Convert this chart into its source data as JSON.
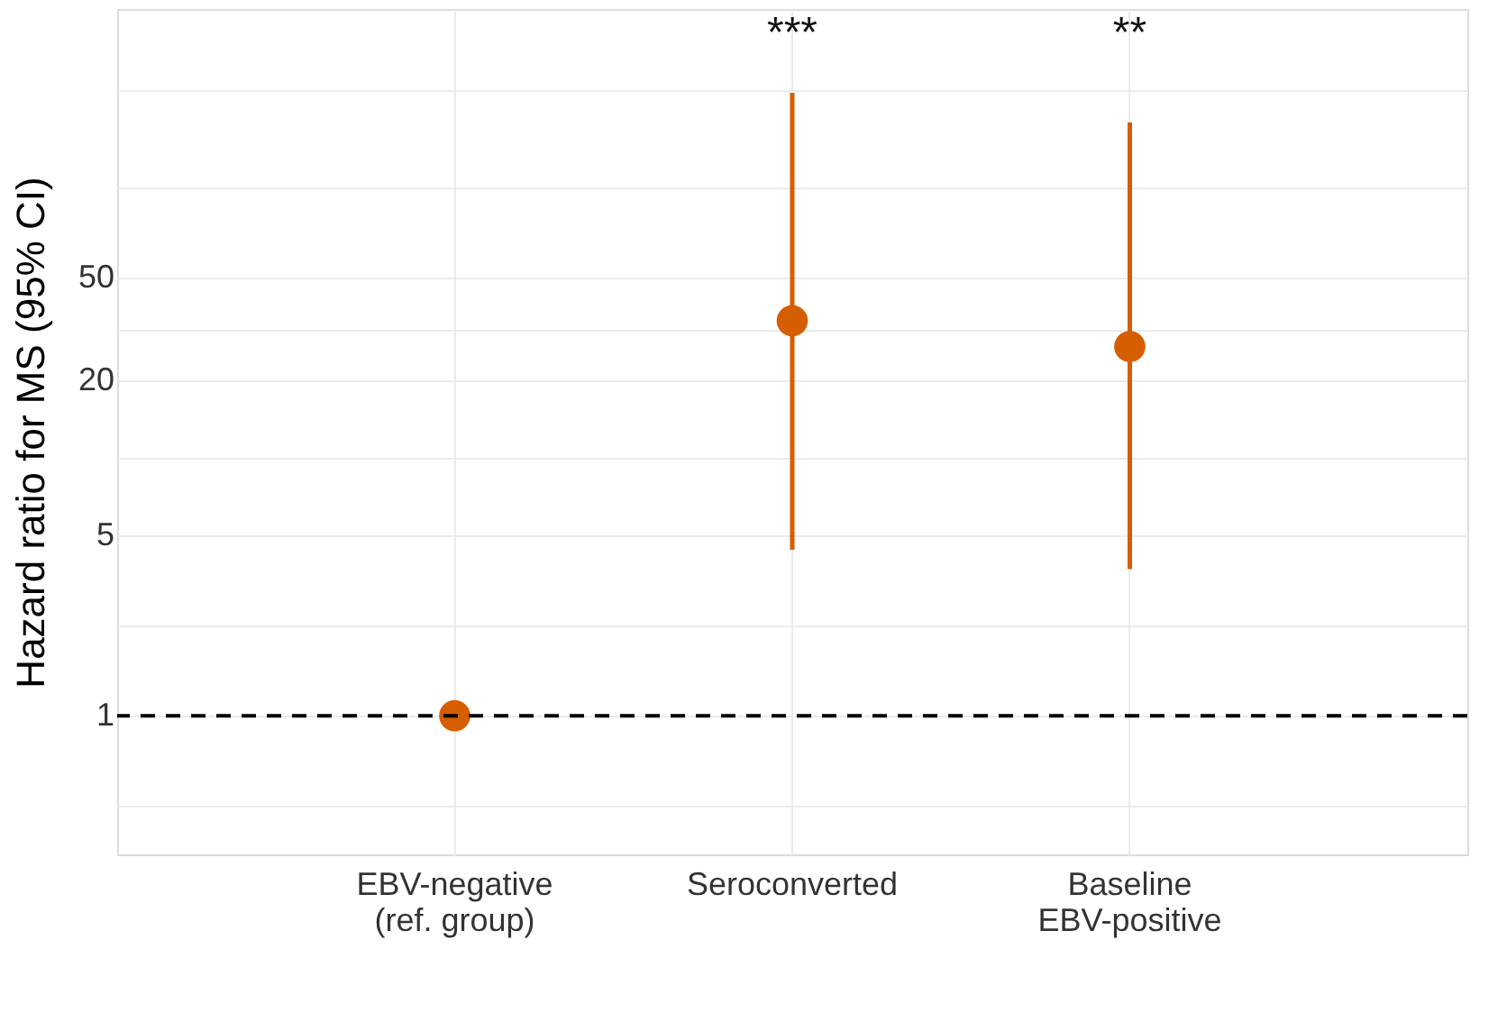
{
  "chart_data": {
    "type": "scatter",
    "ylabel": "Hazard ratio for MS (95% CI)",
    "categories": [
      "EBV-negative\n(ref. group)",
      "Seroconverted",
      "Baseline\nEBV-positive"
    ],
    "values": [
      1,
      34,
      27
    ],
    "errors": [
      null,
      [
        4.4,
        260
      ],
      [
        3.7,
        200
      ]
    ],
    "color": "#d55e00",
    "log": true,
    "ylim": [
      0.29,
      550
    ],
    "yticks": [
      {
        "value": 0.45,
        "label": null
      },
      1,
      {
        "value": 2.24,
        "label": null
      },
      5,
      {
        "value": 10,
        "label": null
      },
      20,
      {
        "value": 31.6,
        "label": null
      },
      50,
      {
        "value": 111,
        "label": null
      },
      {
        "value": 265,
        "label": null
      }
    ],
    "ref_lines": [
      {
        "axis": "y",
        "value": 1,
        "color": "#000000",
        "line_style": "dashed"
      }
    ],
    "annotations": [
      "***",
      "**"
    ],
    "grid": true,
    "marker": "circle"
  }
}
